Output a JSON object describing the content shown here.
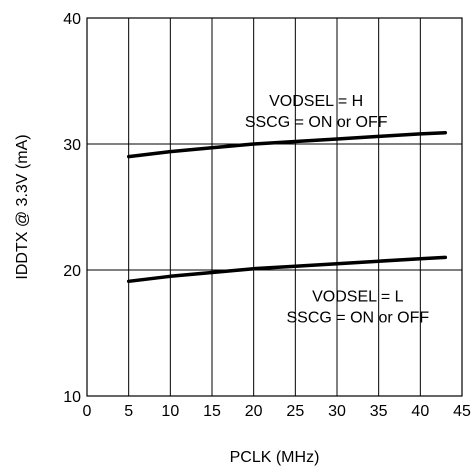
{
  "chart_data": {
    "type": "line",
    "title": "",
    "xlabel": "PCLK (MHz)",
    "ylabel": "IDDTX @ 3.3V (mA)",
    "xlim": [
      0,
      45
    ],
    "ylim": [
      10,
      40
    ],
    "x_ticks": [
      "0",
      "5",
      "10",
      "15",
      "20",
      "25",
      "30",
      "35",
      "40",
      "45"
    ],
    "y_ticks": [
      "10",
      "20",
      "30",
      "40"
    ],
    "grid": "vertical lines every 5 MHz; horizontal lines at 20 and 30 mA",
    "series": [
      {
        "x": [
          5,
          10,
          15,
          20,
          25,
          30,
          35,
          40,
          43
        ],
        "y": [
          29.0,
          29.4,
          29.7,
          30.0,
          30.2,
          30.4,
          30.6,
          30.8,
          30.9
        ]
      },
      {
        "x": [
          5,
          10,
          15,
          20,
          25,
          30,
          35,
          40,
          43
        ],
        "y": [
          19.1,
          19.5,
          19.8,
          20.1,
          20.3,
          20.5,
          20.7,
          20.9,
          21.0
        ]
      }
    ],
    "annotations": [
      {
        "lines": [
          "VODSEL = H",
          "SSCG = ON or OFF"
        ],
        "x": 27.5,
        "y": 33.0
      },
      {
        "lines": [
          "VODSEL = L",
          "SSCG = ON or OFF"
        ],
        "x": 32.5,
        "y": 17.5
      }
    ],
    "line_color": "#000000",
    "grid_color": "#000000"
  }
}
